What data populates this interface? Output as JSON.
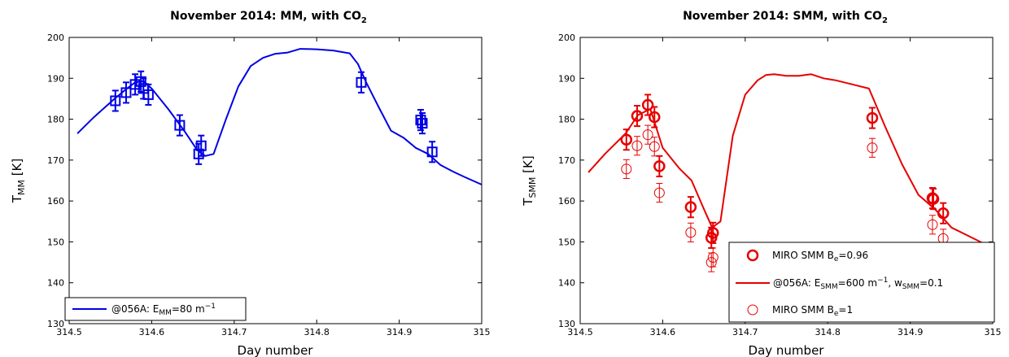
{
  "chart_data": [
    {
      "type": "line",
      "title": "November 2014: MM, with CO",
      "title_sub": "2",
      "xlabel": "Day number",
      "ylabel": "T",
      "ylabel_sub": "MM",
      "ylabel_unit": " [K]",
      "xlim": [
        314.5,
        315
      ],
      "ylim": [
        130,
        200
      ],
      "xticks": [
        "314.5",
        "314.6",
        "314.7",
        "314.8",
        "314.9",
        "315"
      ],
      "yticks": [
        "130",
        "140",
        "150",
        "160",
        "170",
        "180",
        "190",
        "200"
      ],
      "grid": false,
      "legend_position": "bottom-left",
      "color": "#0000e6",
      "line_series": {
        "name_prefix": "@056A: E",
        "name_sub": "MM",
        "name_suffix": "=80 m",
        "name_sup": "−1",
        "x": [
          314.51,
          314.53,
          314.555,
          314.57,
          314.58,
          314.59,
          314.6,
          314.62,
          314.64,
          314.655,
          314.665,
          314.675,
          314.69,
          314.705,
          314.72,
          314.735,
          314.75,
          314.765,
          314.78,
          314.8,
          314.82,
          314.84,
          314.85,
          314.86,
          314.875,
          314.89,
          314.905,
          314.92,
          314.935,
          314.95,
          314.965,
          314.98,
          315.0
        ],
        "y": [
          176.5,
          180.5,
          185,
          187.5,
          189,
          189.3,
          187.5,
          182.5,
          177,
          172.5,
          171,
          171.5,
          180,
          188,
          193,
          195,
          196,
          196.3,
          197.2,
          197.1,
          196.8,
          196.1,
          193.5,
          189,
          183,
          177.2,
          175.5,
          173,
          171.5,
          168.8,
          167.2,
          165.8,
          164
        ]
      },
      "points": {
        "x": [
          314.556,
          314.569,
          314.58,
          314.587,
          314.59,
          314.596,
          314.634,
          314.657,
          314.66,
          314.854,
          314.926,
          314.928,
          314.94
        ],
        "y": [
          184.5,
          186.5,
          188.5,
          189.2,
          187.5,
          186,
          178.5,
          171.5,
          173.5,
          189,
          179.8,
          179,
          172
        ],
        "err": [
          2.5,
          2.5,
          2.5,
          2.5,
          2.5,
          2.5,
          2.5,
          2.5,
          2.5,
          2.5,
          2.5,
          2.5,
          2.5
        ]
      }
    },
    {
      "type": "line",
      "title": "November 2014: SMM, with CO",
      "title_sub": "2",
      "xlabel": "Day number",
      "ylabel": "T",
      "ylabel_sub": "SMM",
      "ylabel_unit": " [K]",
      "xlim": [
        314.5,
        315
      ],
      "ylim": [
        130,
        200
      ],
      "xticks": [
        "314.5",
        "314.6",
        "314.7",
        "314.8",
        "314.9",
        "315"
      ],
      "yticks": [
        "130",
        "140",
        "150",
        "160",
        "170",
        "180",
        "190",
        "200"
      ],
      "grid": false,
      "legend_position": "bottom-right",
      "color": "#e60000",
      "thick_series": {
        "name_prefix": "MIRO SMM B",
        "name_sub": "e",
        "name_suffix": "=0.96",
        "x": [
          314.556,
          314.569,
          314.582,
          314.59,
          314.596,
          314.634,
          314.659,
          314.661,
          314.854,
          314.927,
          314.928,
          314.94
        ],
        "y": [
          175,
          180.8,
          183.5,
          180.5,
          168.5,
          158.5,
          151,
          152.2,
          180.3,
          160.7,
          160.5,
          157
        ],
        "err": [
          2.5,
          2.5,
          2.5,
          2.5,
          2.5,
          2.5,
          2.5,
          2.5,
          2.5,
          2.5,
          2.5,
          2.5
        ]
      },
      "line_series": {
        "name_prefix": "@056A: E",
        "name_sub": "SMM",
        "name_mid": "=600 m",
        "name_sup": "−1",
        "name_mid2": ", w",
        "name_sub2": "SMM",
        "name_suffix": "=0.1",
        "x": [
          314.51,
          314.53,
          314.555,
          314.57,
          314.585,
          314.6,
          314.62,
          314.635,
          314.65,
          314.66,
          314.67,
          314.685,
          314.7,
          314.715,
          314.725,
          314.735,
          314.75,
          314.765,
          314.78,
          314.795,
          314.81,
          314.83,
          314.85,
          314.87,
          314.89,
          314.91,
          314.93,
          314.95,
          314.975,
          315.0
        ],
        "y": [
          167,
          171.5,
          176.5,
          181,
          182.5,
          173,
          168,
          165,
          158,
          153.5,
          155,
          176,
          186,
          189.5,
          190.8,
          191,
          190.6,
          190.6,
          191,
          190,
          189.5,
          188.5,
          187.5,
          178,
          169,
          161.5,
          158,
          153.5,
          151,
          148.5
        ]
      },
      "thin_series": {
        "name_prefix": "MIRO SMM B",
        "name_sub": "e",
        "name_suffix": "=1",
        "x": [
          314.556,
          314.569,
          314.582,
          314.59,
          314.596,
          314.634,
          314.659,
          314.661,
          314.854,
          314.927,
          314.94
        ],
        "y": [
          167.8,
          173.5,
          176.2,
          173.3,
          162,
          152.3,
          145,
          146.2,
          173,
          154.2,
          150.8
        ],
        "err": [
          2.3,
          2.3,
          2.3,
          2.3,
          2.3,
          2.3,
          2.3,
          2.3,
          2.3,
          2.3,
          2.3
        ]
      }
    }
  ]
}
